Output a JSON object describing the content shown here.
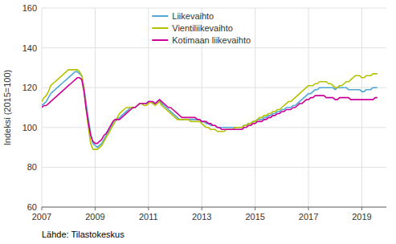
{
  "chart_data": {
    "type": "line",
    "ylabel": "Indeksi (2015=100)",
    "source": "Lähde: Tilastokeskus",
    "xlim": [
      2007.0,
      2019.92
    ],
    "xticks": [
      2007,
      2009,
      2011,
      2013,
      2015,
      2017,
      2019
    ],
    "ylim": [
      60,
      160
    ],
    "yticks": [
      60,
      80,
      100,
      120,
      140,
      160
    ],
    "grid": true,
    "legend": "upper left",
    "x": [
      2007,
      2007.0833333333333,
      2007.1666666666667,
      2007.25,
      2007.3333333333333,
      2007.4166666666667,
      2007.5,
      2007.5833333333333,
      2007.6666666666667,
      2007.75,
      2007.8333333333333,
      2007.9166666666667,
      2008,
      2008.0833333333333,
      2008.1666666666667,
      2008.25,
      2008.3333333333333,
      2008.4166666666667,
      2008.5,
      2008.5833333333333,
      2008.6666666666667,
      2008.75,
      2008.8333333333333,
      2008.9166666666667,
      2009,
      2009.0833333333333,
      2009.1666666666667,
      2009.25,
      2009.3333333333333,
      2009.4166666666667,
      2009.5,
      2009.5833333333333,
      2009.6666666666667,
      2009.75,
      2009.8333333333333,
      2009.9166666666667,
      2010,
      2010.0833333333333,
      2010.1666666666667,
      2010.25,
      2010.3333333333333,
      2010.4166666666667,
      2010.5,
      2010.5833333333333,
      2010.6666666666667,
      2010.75,
      2010.8333333333333,
      2010.9166666666667,
      2011,
      2011.0833333333333,
      2011.1666666666667,
      2011.25,
      2011.3333333333333,
      2011.4166666666667,
      2011.5,
      2011.5833333333333,
      2011.6666666666667,
      2011.75,
      2011.8333333333333,
      2011.9166666666667,
      2012,
      2012.0833333333333,
      2012.1666666666667,
      2012.25,
      2012.3333333333333,
      2012.4166666666667,
      2012.5,
      2012.5833333333333,
      2012.6666666666667,
      2012.75,
      2012.8333333333333,
      2012.9166666666667,
      2013,
      2013.0833333333333,
      2013.1666666666667,
      2013.25,
      2013.3333333333333,
      2013.4166666666667,
      2013.5,
      2013.5833333333333,
      2013.6666666666667,
      2013.75,
      2013.8333333333333,
      2013.9166666666667,
      2014,
      2014.0833333333333,
      2014.1666666666667,
      2014.25,
      2014.3333333333333,
      2014.4166666666667,
      2014.5,
      2014.5833333333333,
      2014.6666666666667,
      2014.75,
      2014.8333333333333,
      2014.9166666666667,
      2015,
      2015.0833333333333,
      2015.1666666666667,
      2015.25,
      2015.3333333333333,
      2015.4166666666667,
      2015.5,
      2015.5833333333333,
      2015.6666666666667,
      2015.75,
      2015.8333333333333,
      2015.9166666666667,
      2016,
      2016.0833333333333,
      2016.1666666666667,
      2016.25,
      2016.3333333333333,
      2016.4166666666667,
      2016.5,
      2016.5833333333333,
      2016.6666666666667,
      2016.75,
      2016.8333333333333,
      2016.9166666666667,
      2017,
      2017.0833333333333,
      2017.1666666666667,
      2017.25,
      2017.3333333333333,
      2017.4166666666667,
      2017.5,
      2017.5833333333333,
      2017.6666666666667,
      2017.75,
      2017.8333333333333,
      2017.9166666666667,
      2018,
      2018.0833333333333,
      2018.1666666666667,
      2018.25,
      2018.3333333333333,
      2018.4166666666667,
      2018.5,
      2018.5833333333333,
      2018.6666666666667,
      2018.75,
      2018.8333333333333,
      2018.9166666666667,
      2019,
      2019.0833333333333,
      2019.1666666666667,
      2019.25,
      2019.3333333333333,
      2019.4166666666667,
      2019.5,
      2019.5833333333333
    ],
    "series": [
      {
        "name": "Liikevaihto",
        "color": "#4fa8d5",
        "values": [
          111,
          112,
          113,
          115,
          117,
          118,
          119,
          120,
          121,
          122,
          123,
          124,
          125,
          126,
          127,
          128,
          128,
          127,
          126,
          120,
          112,
          104,
          97,
          92,
          91,
          90,
          91,
          92,
          94,
          96,
          98,
          100,
          102,
          103,
          104,
          105,
          106,
          107,
          108,
          109,
          110,
          110,
          110,
          111,
          112,
          112,
          112,
          112,
          113,
          113,
          112,
          112,
          113,
          114,
          112,
          111,
          110,
          109,
          108,
          107,
          106,
          105,
          104,
          104,
          104,
          104,
          104,
          104,
          104,
          104,
          104,
          104,
          103,
          103,
          102,
          102,
          101,
          101,
          101,
          100,
          100,
          100,
          100,
          100,
          100,
          100,
          100,
          100,
          100,
          100,
          100,
          101,
          101,
          102,
          102,
          103,
          103,
          104,
          104,
          104,
          105,
          105,
          106,
          106,
          107,
          107,
          108,
          108,
          109,
          109,
          110,
          110,
          110,
          111,
          111,
          112,
          113,
          114,
          115,
          116,
          117,
          117,
          118,
          119,
          119,
          120,
          120,
          120,
          120,
          120,
          120,
          120,
          119,
          120,
          120,
          120,
          120,
          120,
          119,
          119,
          119,
          119,
          119,
          119,
          118,
          118,
          119,
          119,
          119,
          120,
          120,
          120
        ]
      },
      {
        "name": "Vientiliikevaihto",
        "color": "#b5c200",
        "values": [
          113,
          115,
          116,
          118,
          121,
          122,
          123,
          124,
          125,
          126,
          127,
          128,
          129,
          129,
          129,
          129,
          129,
          128,
          126,
          119,
          109,
          100,
          92,
          89,
          89,
          89,
          90,
          91,
          93,
          95,
          97,
          99,
          101,
          103,
          105,
          107,
          108,
          109,
          110,
          110,
          110,
          110,
          110,
          111,
          112,
          112,
          111,
          111,
          112,
          113,
          112,
          111,
          112,
          113,
          111,
          110,
          109,
          108,
          107,
          106,
          105,
          104,
          104,
          104,
          104,
          104,
          104,
          103,
          103,
          103,
          103,
          103,
          102,
          101,
          100,
          100,
          99,
          99,
          99,
          98,
          98,
          98,
          98,
          99,
          99,
          99,
          99,
          100,
          100,
          100,
          100,
          101,
          101,
          102,
          102,
          103,
          103,
          104,
          105,
          105,
          106,
          106,
          107,
          107,
          108,
          108,
          109,
          109,
          110,
          111,
          112,
          113,
          113,
          114,
          115,
          116,
          117,
          118,
          119,
          120,
          121,
          121,
          121,
          122,
          122,
          123,
          123,
          123,
          123,
          122,
          122,
          121,
          120,
          120,
          121,
          121,
          122,
          123,
          123,
          124,
          125,
          126,
          126,
          126,
          125,
          125,
          126,
          126,
          126,
          127,
          127,
          127
        ]
      },
      {
        "name": "Kotimaan liikevaihto",
        "color": "#cc0099",
        "values": [
          110,
          111,
          111,
          112,
          113,
          114,
          115,
          116,
          117,
          118,
          119,
          120,
          121,
          122,
          123,
          124,
          125,
          125,
          124,
          118,
          109,
          102,
          96,
          93,
          92,
          92,
          93,
          94,
          96,
          97,
          99,
          101,
          103,
          104,
          104,
          104,
          105,
          106,
          107,
          108,
          109,
          110,
          110,
          111,
          112,
          112,
          112,
          112,
          113,
          113,
          113,
          112,
          113,
          114,
          113,
          112,
          111,
          110,
          110,
          109,
          108,
          107,
          106,
          105,
          105,
          105,
          105,
          105,
          105,
          105,
          104,
          104,
          103,
          103,
          103,
          102,
          102,
          101,
          101,
          100,
          100,
          99,
          99,
          99,
          99,
          99,
          99,
          99,
          99,
          99,
          99,
          100,
          100,
          101,
          101,
          102,
          102,
          103,
          103,
          103,
          104,
          104,
          105,
          105,
          106,
          106,
          107,
          107,
          108,
          108,
          109,
          109,
          109,
          110,
          110,
          111,
          112,
          112,
          113,
          114,
          114,
          115,
          115,
          116,
          116,
          116,
          116,
          116,
          115,
          115,
          115,
          115,
          114,
          114,
          115,
          115,
          115,
          115,
          115,
          114,
          114,
          114,
          114,
          114,
          114,
          114,
          114,
          114,
          114,
          114,
          115,
          115
        ]
      }
    ]
  }
}
